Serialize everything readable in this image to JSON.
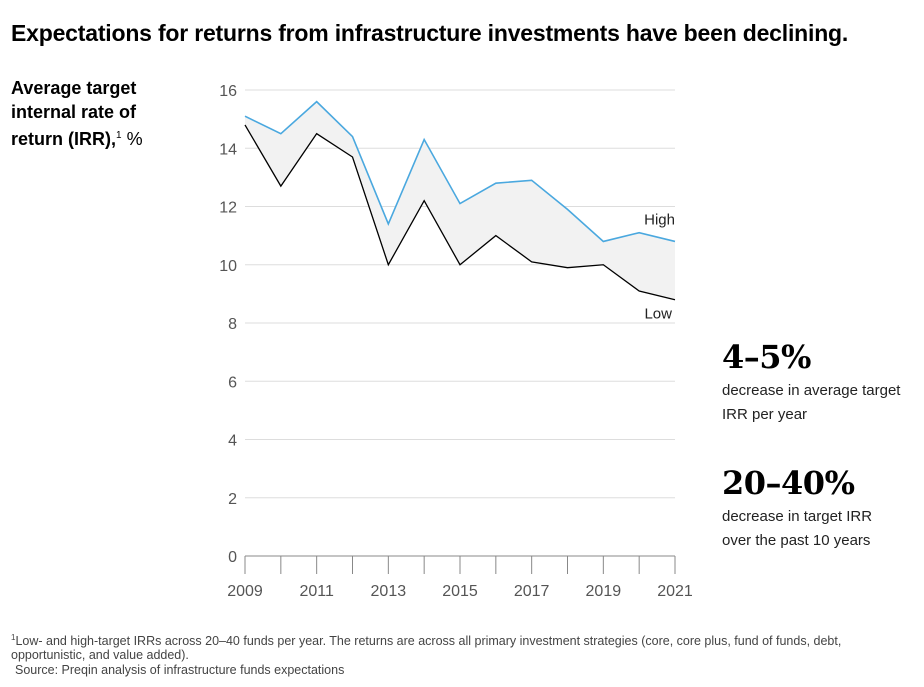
{
  "title": "Expectations for returns from infrastructure investments have been declining.",
  "ylabel": {
    "main": "Average target internal rate of return (IRR),",
    "sup": "1",
    "unit": "%"
  },
  "stats": [
    {
      "value": "4–5%",
      "text": "decrease in average target IRR per year"
    },
    {
      "value": "20–40%",
      "text": "decrease in target IRR over the past 10 years"
    }
  ],
  "footnote": {
    "sup": "1",
    "text": "Low- and high-target IRRs across 20–40 funds per year. The returns are across all primary investment strategies (core, core plus, fund of funds, debt, opportunistic, and value added)."
  },
  "source": "Source: Preqin analysis of infrastructure funds expectations",
  "colors": {
    "high": "#4aa8df",
    "low": "#000000",
    "band": "#f2f2f2",
    "grid": "#dddddd",
    "axis": "#888888"
  },
  "chart_data": {
    "type": "line",
    "x": [
      2009,
      2010,
      2011,
      2012,
      2013,
      2014,
      2015,
      2016,
      2017,
      2018,
      2019,
      2020,
      2021
    ],
    "x_tick_labels": [
      "2009",
      "2011",
      "2013",
      "2015",
      "2017",
      "2019",
      "2021"
    ],
    "y_ticks": [
      0,
      2,
      4,
      6,
      8,
      10,
      12,
      14,
      16
    ],
    "ylim": [
      0,
      16
    ],
    "grid": true,
    "series": [
      {
        "name": "High",
        "values": [
          15.1,
          14.5,
          15.6,
          14.4,
          11.4,
          14.3,
          12.1,
          12.8,
          12.9,
          11.9,
          10.8,
          11.1,
          10.8
        ]
      },
      {
        "name": "Low",
        "values": [
          14.8,
          12.7,
          14.5,
          13.7,
          10.0,
          12.2,
          10.0,
          11.0,
          10.1,
          9.9,
          10.0,
          9.1,
          8.8
        ]
      }
    ]
  }
}
